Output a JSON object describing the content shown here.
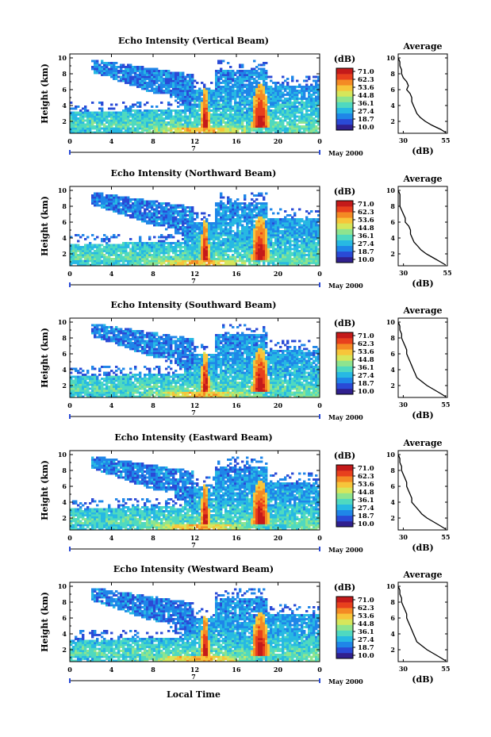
{
  "figure": {
    "xlabel": "Local Time",
    "date_label": "May 2000",
    "day_label": "7",
    "colorbar_unit": "(dB)",
    "colorbar_ticks": [
      "71.0",
      "62.3",
      "53.6",
      "44.8",
      "36.1",
      "27.4",
      "18.7",
      "10.0"
    ],
    "colorscale": [
      "#30208e",
      "#2a4ad6",
      "#1f86e8",
      "#27b9e3",
      "#4fd9c0",
      "#8ee48e",
      "#d6e65b",
      "#f7c53a",
      "#f48a24",
      "#e8401d",
      "#c41a1a"
    ]
  },
  "chart_data": [
    {
      "type": "heatmap",
      "title": "Echo Intensity (Vertical Beam)",
      "ylabel": "Height (km)",
      "xlim": [
        0,
        24
      ],
      "ylim": [
        0.5,
        10.5
      ],
      "x_ticks": [
        "0",
        "4",
        "8",
        "12",
        "16",
        "20",
        "0"
      ],
      "y_ticks": [
        "2",
        "4",
        "6",
        "8",
        "10"
      ],
      "value_range": [
        10.0,
        71.0
      ],
      "profile": {
        "title": "Average",
        "xlabel": "(dB)",
        "xlim": [
          27,
          56
        ],
        "x_ticks": [
          "30",
          "55"
        ],
        "y_ticks": [
          "2",
          "4",
          "6",
          "8",
          "10"
        ],
        "height": [
          0.6,
          1,
          1.5,
          2,
          2.5,
          3,
          3.5,
          4,
          4.5,
          5,
          5.5,
          6,
          6.5,
          7,
          7.5,
          8,
          8.5,
          9,
          9.5,
          10
        ],
        "db": [
          55,
          52,
          47,
          43,
          40,
          38,
          37,
          36,
          35,
          35,
          34,
          32,
          33,
          32,
          30,
          29,
          29,
          28,
          28,
          27
        ]
      }
    },
    {
      "type": "heatmap",
      "title": "Echo Intensity (Northward Beam)",
      "ylabel": "Height (km)",
      "xlim": [
        0,
        24
      ],
      "ylim": [
        0.5,
        10.5
      ],
      "x_ticks": [
        "0",
        "4",
        "8",
        "12",
        "16",
        "20",
        "0"
      ],
      "y_ticks": [
        "2",
        "4",
        "6",
        "8",
        "10"
      ],
      "value_range": [
        10.0,
        71.0
      ],
      "profile": {
        "title": "Average",
        "xlabel": "(dB)",
        "xlim": [
          27,
          55
        ],
        "x_ticks": [
          "30",
          "55"
        ],
        "y_ticks": [
          "2",
          "4",
          "6",
          "8",
          "10"
        ],
        "height": [
          0.6,
          1,
          1.5,
          2,
          2.5,
          3,
          3.5,
          4,
          4.5,
          5,
          5.5,
          6,
          6.5,
          7,
          7.5,
          8,
          8.5,
          9,
          9.5,
          10
        ],
        "db": [
          54,
          51,
          47,
          43,
          40,
          38,
          36,
          35,
          34,
          34,
          33,
          31,
          31,
          30,
          29,
          28,
          28,
          28,
          28,
          27
        ]
      }
    },
    {
      "type": "heatmap",
      "title": "Echo Intensity (Southward Beam)",
      "ylabel": "Height (km)",
      "xlim": [
        0,
        24
      ],
      "ylim": [
        0.5,
        10.5
      ],
      "x_ticks": [
        "0",
        "4",
        "8",
        "12",
        "16",
        "20",
        "0"
      ],
      "y_ticks": [
        "2",
        "4",
        "6",
        "8",
        "10"
      ],
      "value_range": [
        10.0,
        71.0
      ],
      "profile": {
        "title": "Average",
        "xlabel": "(dB)",
        "xlim": [
          27,
          56
        ],
        "x_ticks": [
          "30",
          "55"
        ],
        "y_ticks": [
          "2",
          "4",
          "6",
          "8",
          "10"
        ],
        "height": [
          0.6,
          1,
          1.5,
          2,
          2.5,
          3,
          3.5,
          4,
          4.5,
          5,
          5.5,
          6,
          6.5,
          7,
          7.5,
          8,
          8.5,
          9,
          9.5,
          10
        ],
        "db": [
          55,
          52,
          48,
          44,
          41,
          38,
          37,
          36,
          35,
          34,
          33,
          32,
          32,
          31,
          30,
          29,
          29,
          28,
          28,
          27
        ]
      }
    },
    {
      "type": "heatmap",
      "title": "Echo Intensity (Eastward Beam)",
      "ylabel": "Height (km)",
      "xlim": [
        0,
        24
      ],
      "ylim": [
        0.5,
        10.5
      ],
      "x_ticks": [
        "0",
        "4",
        "8",
        "12",
        "16",
        "20",
        "0"
      ],
      "y_ticks": [
        "2",
        "4",
        "6",
        "8",
        "10"
      ],
      "value_range": [
        10.0,
        71.0
      ],
      "profile": {
        "title": "Average",
        "xlabel": "(dB)",
        "xlim": [
          27,
          56
        ],
        "x_ticks": [
          "30",
          "55"
        ],
        "y_ticks": [
          "2",
          "4",
          "6",
          "8",
          "10"
        ],
        "height": [
          0.6,
          1,
          1.5,
          2,
          2.5,
          3,
          3.5,
          4,
          4.5,
          5,
          5.5,
          6,
          6.5,
          7,
          7.5,
          8,
          8.5,
          9,
          9.5,
          10
        ],
        "db": [
          55,
          52,
          48,
          44,
          41,
          39,
          37,
          35,
          35,
          34,
          33,
          32,
          32,
          31,
          30,
          29,
          29,
          28,
          28,
          27
        ]
      }
    },
    {
      "type": "heatmap",
      "title": "Echo Intensity (Westward Beam)",
      "ylabel": "Height (km)",
      "xlim": [
        0,
        24
      ],
      "ylim": [
        0.5,
        10.5
      ],
      "x_ticks": [
        "0",
        "4",
        "8",
        "12",
        "16",
        "20",
        "0"
      ],
      "y_ticks": [
        "2",
        "4",
        "6",
        "8",
        "10"
      ],
      "value_range": [
        10.0,
        71.0
      ],
      "profile": {
        "title": "Average",
        "xlabel": "(dB)",
        "xlim": [
          27,
          56
        ],
        "x_ticks": [
          "30",
          "55"
        ],
        "y_ticks": [
          "2",
          "4",
          "6",
          "8",
          "10"
        ],
        "height": [
          0.6,
          1,
          1.5,
          2,
          2.5,
          3,
          3.5,
          4,
          4.5,
          5,
          5.5,
          6,
          6.5,
          7,
          7.5,
          8,
          8.5,
          9,
          9.5,
          10
        ],
        "db": [
          55,
          52,
          48,
          44,
          41,
          38,
          37,
          36,
          35,
          34,
          33,
          32,
          32,
          31,
          30,
          29,
          29,
          28,
          28,
          27
        ]
      }
    }
  ]
}
